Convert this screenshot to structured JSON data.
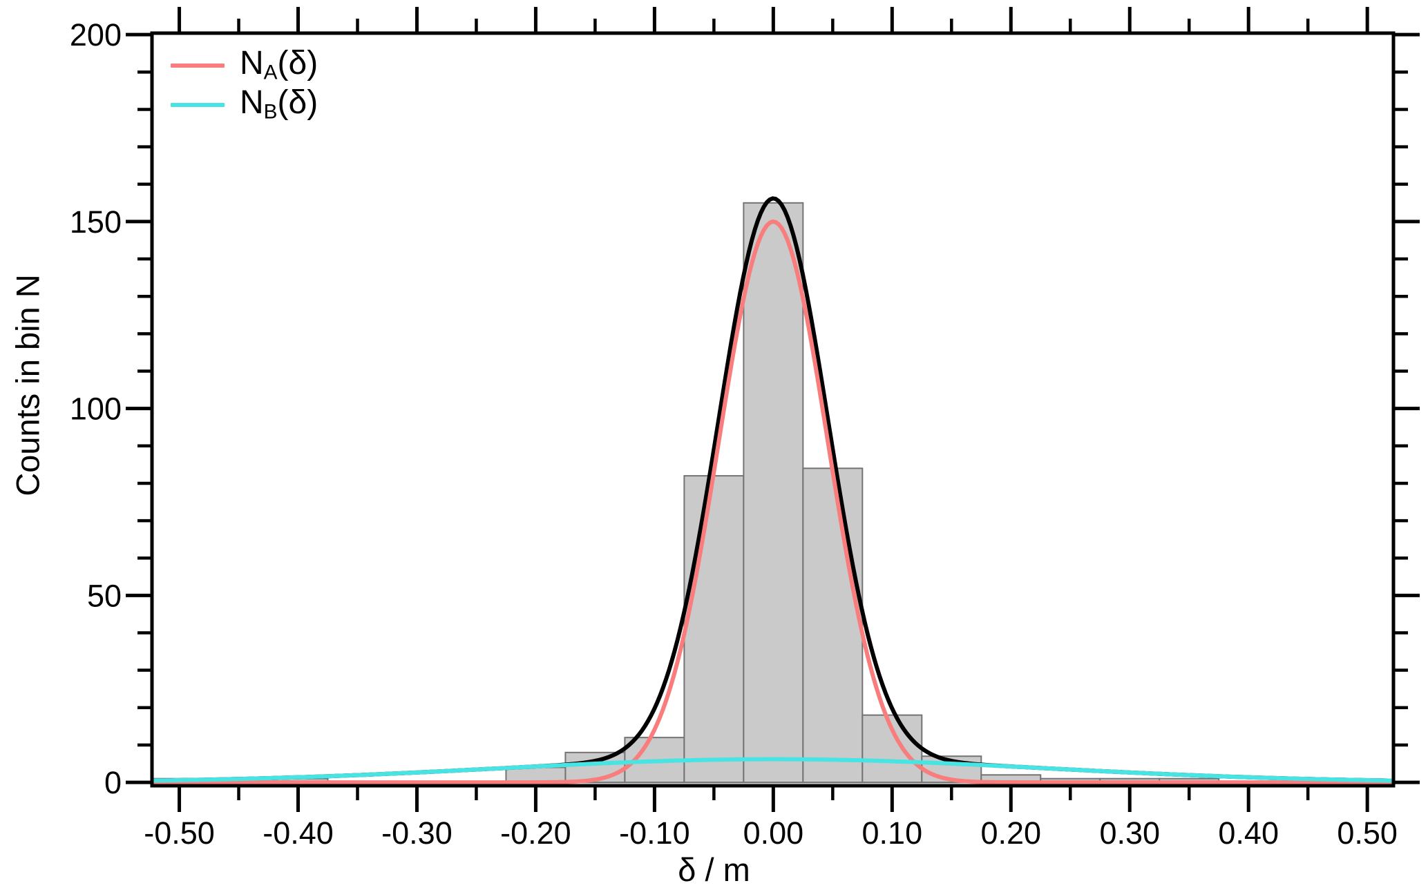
{
  "legend": {
    "items": [
      {
        "prefix": "N",
        "sub": "A",
        "suffix": "(δ)",
        "color": "#f97d7d"
      },
      {
        "prefix": "N",
        "sub": "B",
        "suffix": "(δ)",
        "color": "#48e4e4"
      }
    ]
  },
  "chart_data": {
    "type": "bar",
    "subtype": "histogram-with-fit-curves",
    "title": "",
    "xlabel": "δ / m",
    "ylabel": "Counts in bin N",
    "xlim": [
      -0.523,
      0.522
    ],
    "ylim": [
      -0.9,
      200.4
    ],
    "grid": false,
    "legend_position": "top-left",
    "background": "#ffffff",
    "axis_color": "#000000",
    "x_ticks": {
      "major_values": [
        -0.5,
        -0.4,
        -0.3,
        -0.2,
        -0.1,
        0,
        0.1,
        0.2,
        0.3,
        0.4,
        0.5
      ],
      "major_labels": [
        "-0.50",
        "-0.40",
        "-0.30",
        "-0.20",
        "-0.10",
        "0.00",
        "0.10",
        "0.20",
        "0.30",
        "0.40",
        "0.50"
      ],
      "minor_values": [
        -0.45,
        -0.35,
        -0.25,
        -0.15,
        -0.05,
        0.05,
        0.15,
        0.25,
        0.35,
        0.45
      ]
    },
    "y_ticks": {
      "major_values": [
        0,
        50,
        100,
        150,
        200
      ],
      "major_labels": [
        "0",
        "50",
        "100",
        "150",
        "200"
      ],
      "minor_values": [
        10,
        20,
        30,
        40,
        60,
        70,
        80,
        90,
        110,
        120,
        130,
        140,
        160,
        170,
        180,
        190
      ]
    },
    "histogram": {
      "bin_width": 0.05,
      "bin_centers": [
        -0.5,
        -0.45,
        -0.4,
        -0.35,
        -0.3,
        -0.25,
        -0.2,
        -0.15,
        -0.1,
        -0.05,
        0,
        0.05,
        0.1,
        0.15,
        0.2,
        0.25,
        0.3,
        0.35,
        0.4,
        0.45,
        0.5
      ],
      "counts": [
        1,
        1,
        1,
        0,
        0,
        0,
        4,
        8,
        12,
        82,
        155,
        84,
        18,
        7,
        2,
        1,
        1,
        1,
        0,
        0,
        0
      ],
      "fill": "#cacaca",
      "stroke": "#737373"
    },
    "series": [
      {
        "name": "N_A(δ)",
        "curve": "gaussian",
        "amplitude": 150,
        "mean": 0,
        "sigma": 0.046,
        "color": "#f97d7d"
      },
      {
        "name": "N_B(δ)",
        "curve": "gaussian",
        "amplitude": 6.2,
        "mean": 0,
        "sigma": 0.23,
        "color": "#48e4e4"
      },
      {
        "name": "N_A+N_B sum",
        "curve": "sum",
        "color": "#000000"
      }
    ]
  }
}
